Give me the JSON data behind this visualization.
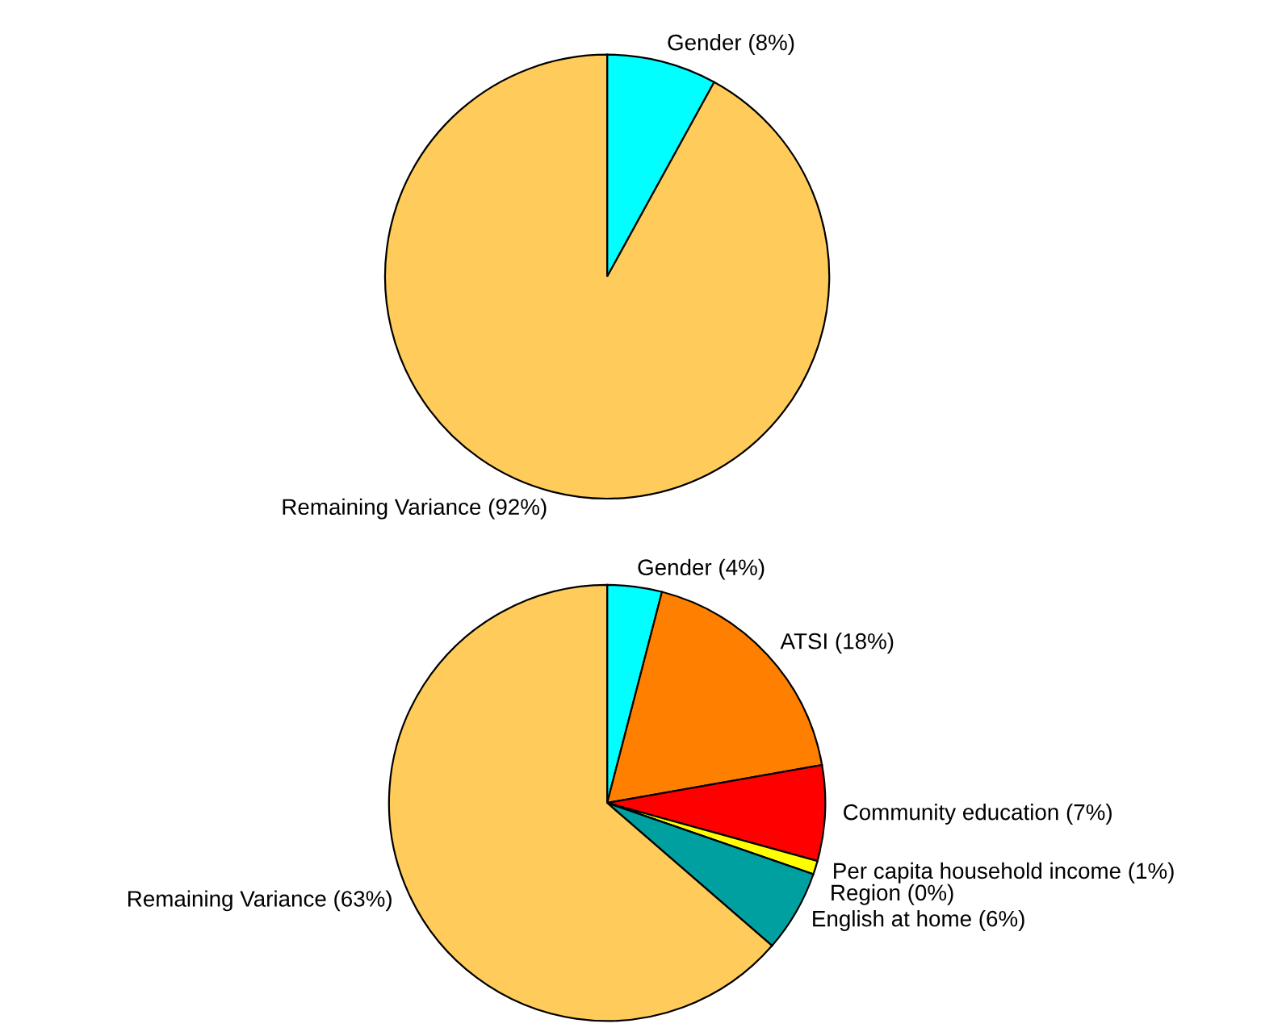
{
  "chart_data": [
    {
      "type": "pie",
      "categories": [
        "Gender (8%)",
        "Remaining Variance (92%)"
      ],
      "values": [
        8,
        92
      ],
      "colors": [
        "#00ffff",
        "#ffcc5c"
      ]
    },
    {
      "type": "pie",
      "categories": [
        "Gender (4%)",
        "ATSI (18%)",
        "Community education (7%)",
        "Per capita household income (1%)",
        "Region (0%)",
        "English at home (6%)",
        "Remaining Variance (63%)"
      ],
      "values": [
        4,
        18,
        7,
        1,
        0,
        6,
        63
      ],
      "colors": [
        "#00ffff",
        "#ff8000",
        "#ff0000",
        "#ffff00",
        "#000080",
        "#00a0a0",
        "#ffcc5c"
      ]
    }
  ]
}
